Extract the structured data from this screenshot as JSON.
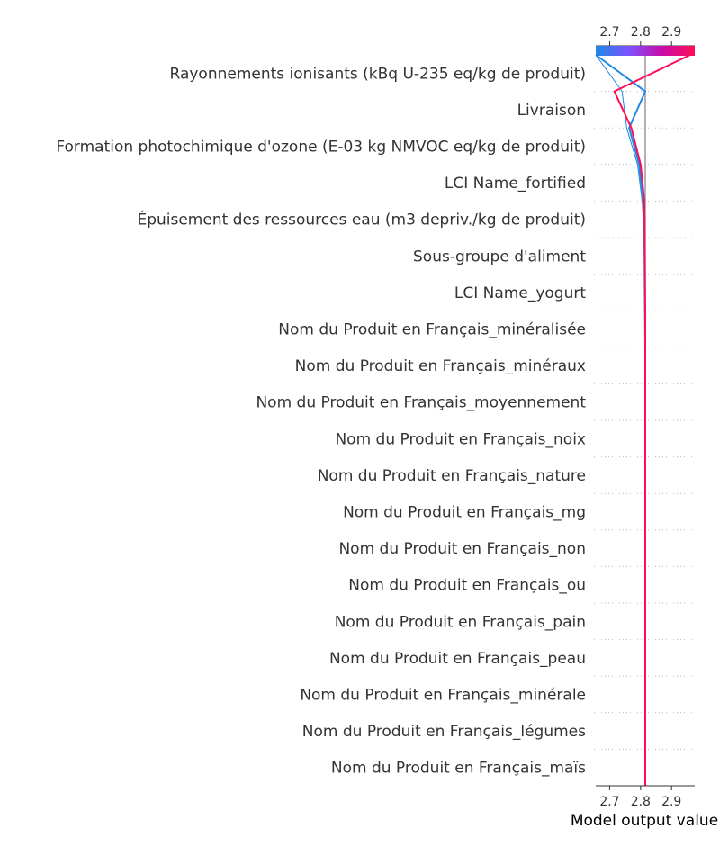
{
  "chart_data": {
    "type": "line",
    "xlabel": "Model output value",
    "xticks": [
      2.7,
      2.8,
      2.9
    ],
    "xlim": [
      2.655,
      2.975
    ],
    "base_value": 2.815,
    "features": [
      "Rayonnements ionisants (kBq U-235 eq/kg de produit)",
      "Livraison",
      "Formation photochimique d'ozone (E-03 kg NMVOC eq/kg de produit)",
      "LCI Name_fortified",
      "Épuisement des ressources eau (m3 depriv./kg de produit)",
      "Sous-groupe d'aliment",
      "LCI Name_yogurt",
      "Nom du Produit en Français_minéralisée",
      "Nom du Produit en Français_minéraux",
      "Nom du Produit en Français_moyennement",
      "Nom du Produit en Français_noix",
      "Nom du Produit en Français_nature",
      "Nom du Produit en Français_mg",
      "Nom du Produit en Français_non",
      "Nom du Produit en Français_ou",
      "Nom du Produit en Français_pain",
      "Nom du Produit en Français_peau",
      "Nom du Produit en Français_minérale",
      "Nom du Produit en Français_légumes",
      "Nom du Produit en Français_maïs"
    ],
    "series": [
      {
        "color": "#1e88e5",
        "width": 2,
        "values": [
          2.655,
          2.815,
          2.763,
          2.795,
          2.808,
          2.812,
          2.813,
          2.814,
          2.815,
          2.815,
          2.815,
          2.815,
          2.815,
          2.815,
          2.815,
          2.815,
          2.815,
          2.815,
          2.815,
          2.815,
          2.815
        ]
      },
      {
        "color": "#1e88e5",
        "width": 1,
        "values": [
          2.655,
          2.74,
          2.755,
          2.79,
          2.805,
          2.812,
          2.813,
          2.814,
          2.815,
          2.815,
          2.815,
          2.815,
          2.815,
          2.815,
          2.815,
          2.815,
          2.815,
          2.815,
          2.815,
          2.815,
          2.815
        ]
      },
      {
        "color": "#ff0d57",
        "width": 2,
        "values": [
          2.96,
          2.715,
          2.77,
          2.8,
          2.812,
          2.813,
          2.814,
          2.815,
          2.815,
          2.815,
          2.815,
          2.815,
          2.815,
          2.815,
          2.815,
          2.815,
          2.815,
          2.815,
          2.815,
          2.815,
          2.815
        ]
      }
    ],
    "colorbar": {
      "colors": [
        "#1e88e5",
        "#7c52ff",
        "#c80caa",
        "#ff0d57"
      ]
    }
  }
}
